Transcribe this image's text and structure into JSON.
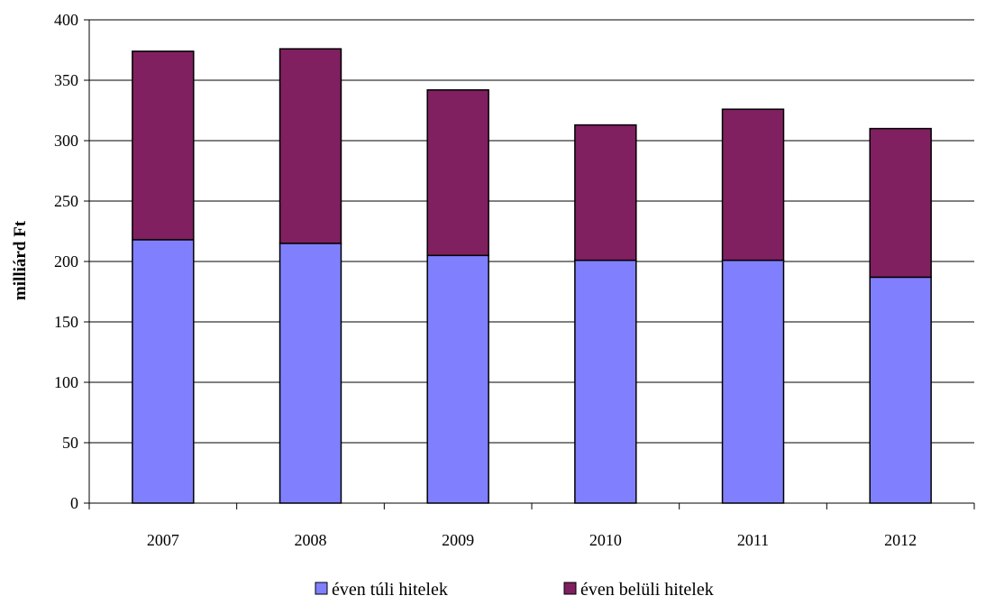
{
  "chart_data": {
    "type": "bar",
    "stacked": true,
    "title": "",
    "xlabel": "",
    "ylabel": "milliárd Ft",
    "ylim": [
      0,
      400
    ],
    "yticks": [
      0,
      50,
      100,
      150,
      200,
      250,
      300,
      350,
      400
    ],
    "grid": true,
    "legend_position": "bottom",
    "categories": [
      "2007",
      "2008",
      "2009",
      "2010",
      "2011",
      "2012"
    ],
    "series": [
      {
        "name": "éven túli hitelek",
        "color": "#8080ff",
        "values": [
          218,
          215,
          205,
          201,
          201,
          187
        ]
      },
      {
        "name": "éven belüli hitelek",
        "color": "#802060",
        "values": [
          156,
          161,
          137,
          112,
          125,
          123
        ]
      }
    ]
  }
}
